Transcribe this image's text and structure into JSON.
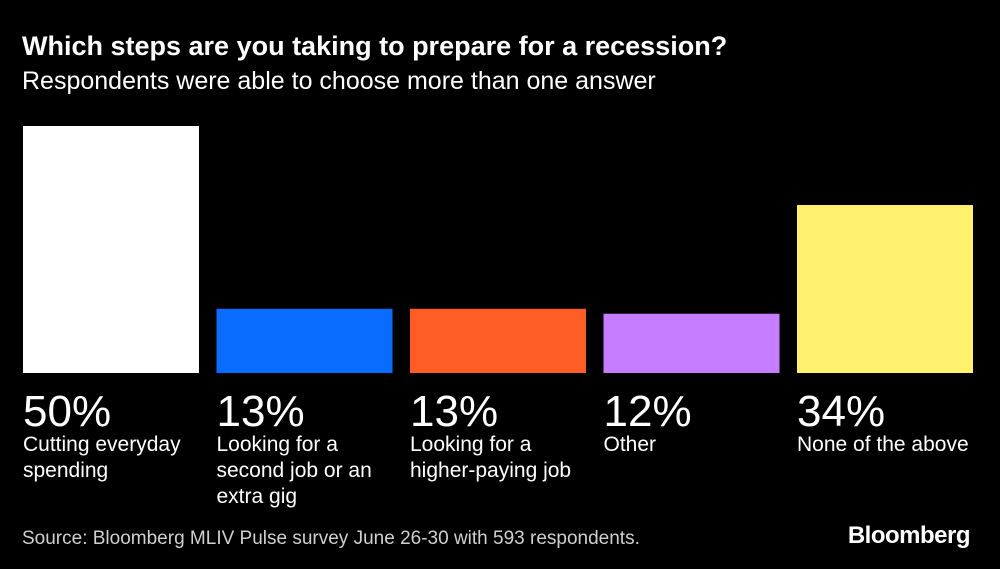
{
  "chart_data": {
    "type": "bar",
    "title": "Which steps are you taking to prepare for a recession?",
    "subtitle": "Respondents were able to choose more than one answer",
    "categories": [
      "Cutting everyday spending",
      "Looking for a second job or an extra gig",
      "Looking for a higher-paying job",
      "Other",
      "None of the above"
    ],
    "label_lines": [
      [
        "Cutting everyday",
        "spending"
      ],
      [
        "Looking for a",
        "second job or an",
        "extra gig"
      ],
      [
        "Looking for a",
        "higher-paying job"
      ],
      [
        "Other"
      ],
      [
        "None of the above"
      ]
    ],
    "values": [
      50,
      13,
      13,
      12,
      34
    ],
    "value_labels": [
      "50%",
      "13%",
      "13%",
      "12%",
      "34%"
    ],
    "colors": [
      "#ffffff",
      "#0a6cff",
      "#ff5c26",
      "#c77dff",
      "#fff06e"
    ],
    "xlabel": "",
    "ylabel": "",
    "ylim": [
      0,
      50
    ],
    "grid": false
  },
  "footer": {
    "source": "Source: Bloomberg MLIV Pulse survey June 26-30 with 593 respondents.",
    "logo": "Bloomberg"
  }
}
